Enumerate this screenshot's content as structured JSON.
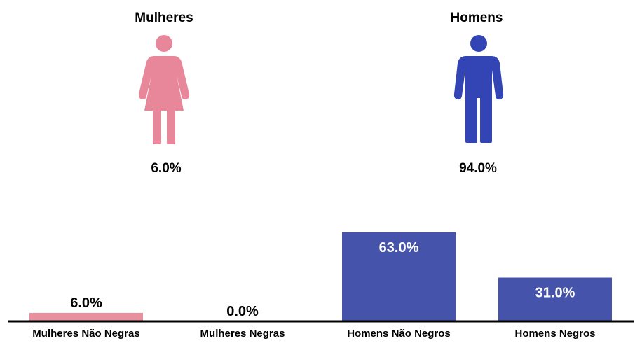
{
  "genders": [
    {
      "key": "women",
      "label": "Mulheres",
      "percent": "6.0%",
      "color": "#e8869a",
      "icon": "woman-icon"
    },
    {
      "key": "men",
      "label": "Homens",
      "percent": "94.0%",
      "color": "#3345b4",
      "icon": "man-icon"
    }
  ],
  "chart_data": {
    "type": "bar",
    "categories": [
      "Mulheres Não Negras",
      "Mulheres Negras",
      "Homens Não Negros",
      "Homens Negros"
    ],
    "values": [
      6.0,
      0.0,
      63.0,
      31.0
    ],
    "value_labels": [
      "6.0%",
      "0.0%",
      "63.0%",
      "31.0%"
    ],
    "colors": [
      "#e8909e",
      "#e8909e",
      "#4553ab",
      "#4553ab"
    ],
    "label_inside_colors": "#ffffff",
    "label_outside_color": "#000000",
    "title": "",
    "xlabel": "",
    "ylabel": "",
    "ylim": [
      0,
      63
    ],
    "grid": false,
    "legend": "none"
  }
}
